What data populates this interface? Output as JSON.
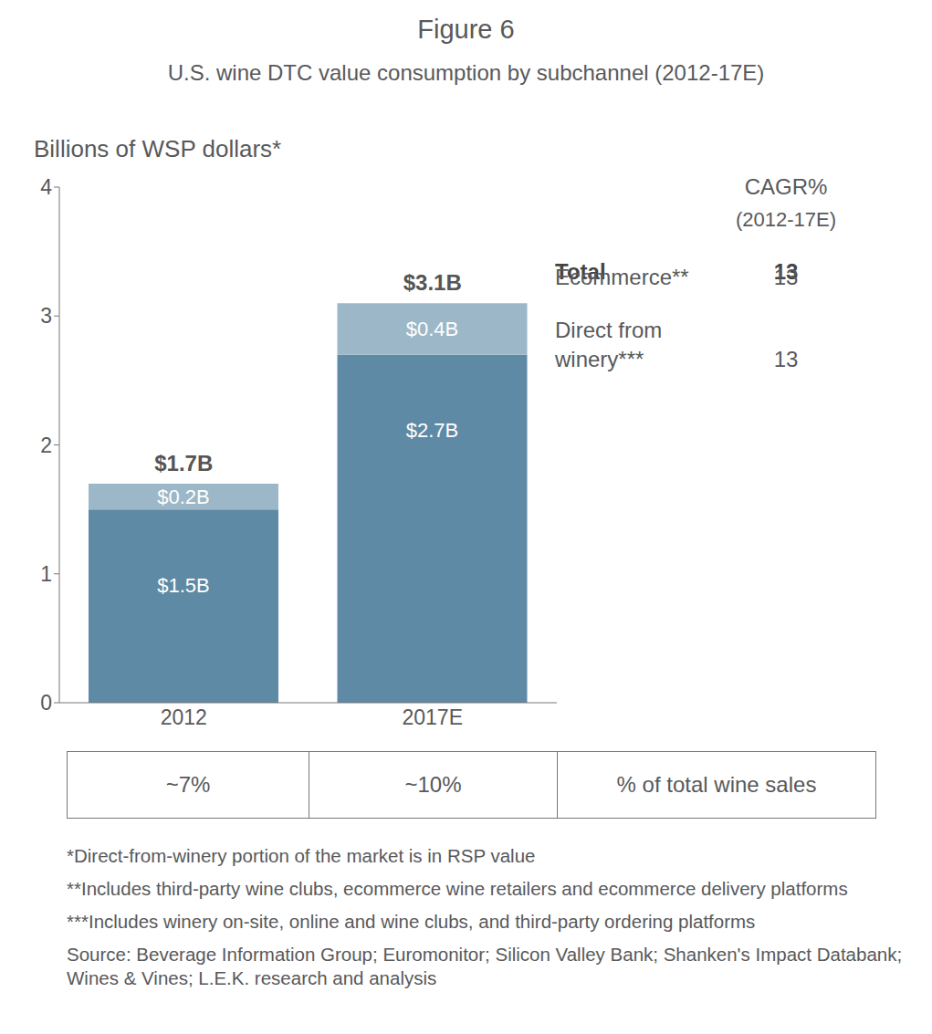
{
  "chart_data": {
    "type": "bar",
    "title": "Figure 6",
    "subtitle": "U.S. wine DTC value consumption by subchannel (2012-17E)",
    "y_label": "Billions of WSP dollars*",
    "categories": [
      "2012",
      "2017E"
    ],
    "stacked": true,
    "data_labels": true,
    "grid": false,
    "ylim": [
      0,
      4
    ],
    "yticks": [
      0,
      1,
      2,
      3,
      4
    ],
    "series": [
      {
        "name": "Direct from winery***",
        "color": "#5f8aa5",
        "values": [
          1.5,
          2.7
        ],
        "value_labels": [
          "$1.5B",
          "$2.7B"
        ],
        "cagr": 13
      },
      {
        "name": "Ecommerce**",
        "color": "#9cb7c8",
        "values": [
          0.2,
          0.4
        ],
        "value_labels": [
          "$0.2B",
          "$0.4B"
        ],
        "cagr": 13
      }
    ],
    "totals": {
      "values": [
        1.7,
        3.1
      ],
      "value_labels": [
        "$1.7B",
        "$3.1B"
      ]
    },
    "cagr_header": "CAGR%",
    "cagr_subheader": "(2012-17E)",
    "total_label": "Total",
    "total_cagr": 13,
    "share_of_sales": {
      "labels": [
        "~7%",
        "~10%"
      ],
      "label": "% of total wine sales"
    },
    "footnotes": [
      "*Direct-from-winery portion of the market is in RSP value",
      "**Includes third-party wine clubs, ecommerce wine retailers and ecommerce delivery platforms",
      "***Includes winery on-site, online and wine clubs, and third-party ordering platforms"
    ],
    "source": "Source: Beverage Information Group; Euromonitor; Silicon Valley Bank; Shanken's Impact Databank; Wines & Vines; L.E.K. research and analysis"
  }
}
